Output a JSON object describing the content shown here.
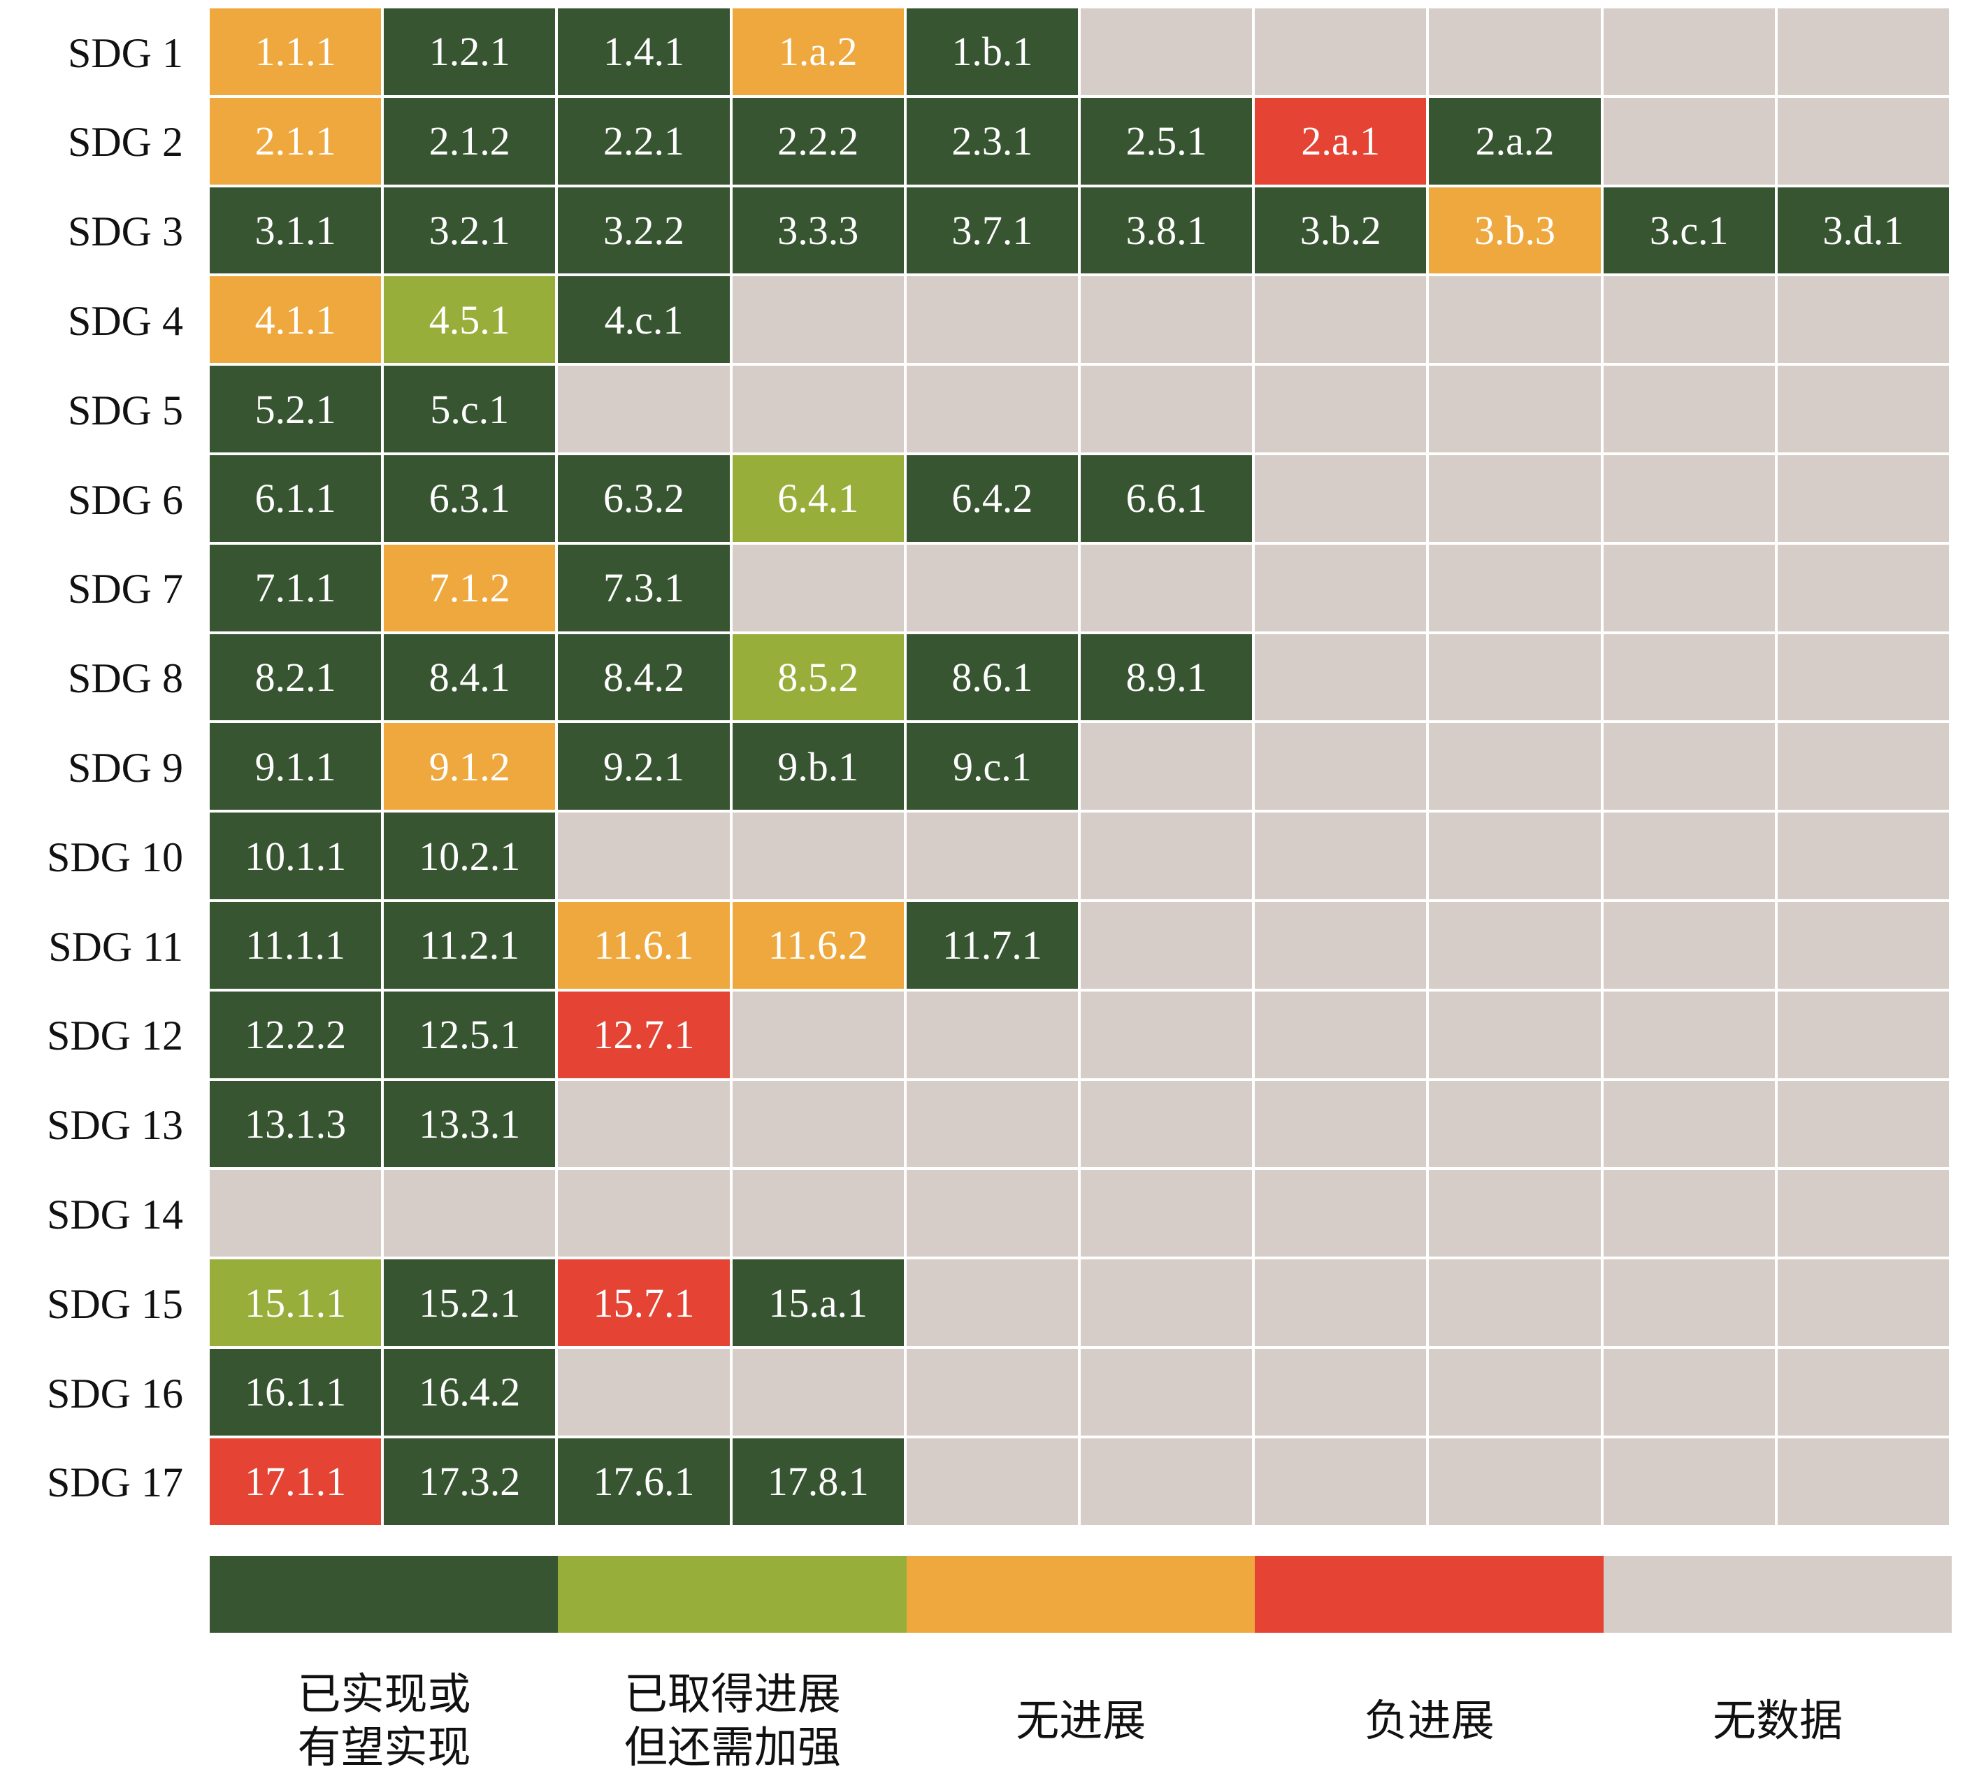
{
  "chart_data": {
    "type": "heatmap",
    "title": "",
    "rows": [
      {
        "label": "SDG 1",
        "cells": [
          [
            "1.1.1",
            "no_progress"
          ],
          [
            "1.2.1",
            "achieved"
          ],
          [
            "1.4.1",
            "achieved"
          ],
          [
            "1.a.2",
            "no_progress"
          ],
          [
            "1.b.1",
            "achieved"
          ]
        ]
      },
      {
        "label": "SDG 2",
        "cells": [
          [
            "2.1.1",
            "no_progress"
          ],
          [
            "2.1.2",
            "achieved"
          ],
          [
            "2.2.1",
            "achieved"
          ],
          [
            "2.2.2",
            "achieved"
          ],
          [
            "2.3.1",
            "achieved"
          ],
          [
            "2.5.1",
            "achieved"
          ],
          [
            "2.a.1",
            "negative"
          ],
          [
            "2.a.2",
            "achieved"
          ]
        ]
      },
      {
        "label": "SDG 3",
        "cells": [
          [
            "3.1.1",
            "achieved"
          ],
          [
            "3.2.1",
            "achieved"
          ],
          [
            "3.2.2",
            "achieved"
          ],
          [
            "3.3.3",
            "achieved"
          ],
          [
            "3.7.1",
            "achieved"
          ],
          [
            "3.8.1",
            "achieved"
          ],
          [
            "3.b.2",
            "achieved"
          ],
          [
            "3.b.3",
            "no_progress"
          ],
          [
            "3.c.1",
            "achieved"
          ],
          [
            "3.d.1",
            "achieved"
          ]
        ]
      },
      {
        "label": "SDG 4",
        "cells": [
          [
            "4.1.1",
            "no_progress"
          ],
          [
            "4.5.1",
            "progress"
          ],
          [
            "4.c.1",
            "achieved"
          ]
        ]
      },
      {
        "label": "SDG 5",
        "cells": [
          [
            "5.2.1",
            "achieved"
          ],
          [
            "5.c.1",
            "achieved"
          ]
        ]
      },
      {
        "label": "SDG 6",
        "cells": [
          [
            "6.1.1",
            "achieved"
          ],
          [
            "6.3.1",
            "achieved"
          ],
          [
            "6.3.2",
            "achieved"
          ],
          [
            "6.4.1",
            "progress"
          ],
          [
            "6.4.2",
            "achieved"
          ],
          [
            "6.6.1",
            "achieved"
          ]
        ]
      },
      {
        "label": "SDG 7",
        "cells": [
          [
            "7.1.1",
            "achieved"
          ],
          [
            "7.1.2",
            "no_progress"
          ],
          [
            "7.3.1",
            "achieved"
          ]
        ]
      },
      {
        "label": "SDG 8",
        "cells": [
          [
            "8.2.1",
            "achieved"
          ],
          [
            "8.4.1",
            "achieved"
          ],
          [
            "8.4.2",
            "achieved"
          ],
          [
            "8.5.2",
            "progress"
          ],
          [
            "8.6.1",
            "achieved"
          ],
          [
            "8.9.1",
            "achieved"
          ]
        ]
      },
      {
        "label": "SDG 9",
        "cells": [
          [
            "9.1.1",
            "achieved"
          ],
          [
            "9.1.2",
            "no_progress"
          ],
          [
            "9.2.1",
            "achieved"
          ],
          [
            "9.b.1",
            "achieved"
          ],
          [
            "9.c.1",
            "achieved"
          ]
        ]
      },
      {
        "label": "SDG 10",
        "cells": [
          [
            "10.1.1",
            "achieved"
          ],
          [
            "10.2.1",
            "achieved"
          ]
        ]
      },
      {
        "label": "SDG 11",
        "cells": [
          [
            "11.1.1",
            "achieved"
          ],
          [
            "11.2.1",
            "achieved"
          ],
          [
            "11.6.1",
            "no_progress"
          ],
          [
            "11.6.2",
            "no_progress"
          ],
          [
            "11.7.1",
            "achieved"
          ]
        ]
      },
      {
        "label": "SDG 12",
        "cells": [
          [
            "12.2.2",
            "achieved"
          ],
          [
            "12.5.1",
            "achieved"
          ],
          [
            "12.7.1",
            "negative"
          ]
        ]
      },
      {
        "label": "SDG 13",
        "cells": [
          [
            "13.1.3",
            "achieved"
          ],
          [
            "13.3.1",
            "achieved"
          ]
        ]
      },
      {
        "label": "SDG 14",
        "cells": []
      },
      {
        "label": "SDG 15",
        "cells": [
          [
            "15.1.1",
            "progress"
          ],
          [
            "15.2.1",
            "achieved"
          ],
          [
            "15.7.1",
            "negative"
          ],
          [
            "15.a.1",
            "achieved"
          ]
        ]
      },
      {
        "label": "SDG 16",
        "cells": [
          [
            "16.1.1",
            "achieved"
          ],
          [
            "16.4.2",
            "achieved"
          ]
        ]
      },
      {
        "label": "SDG 17",
        "cells": [
          [
            "17.1.1",
            "negative"
          ],
          [
            "17.3.2",
            "achieved"
          ],
          [
            "17.6.1",
            "achieved"
          ],
          [
            "17.8.1",
            "achieved"
          ]
        ]
      }
    ],
    "columns": 10,
    "legend": [
      {
        "key": "achieved",
        "label": "已实现或\n有望实现",
        "color": "#375531"
      },
      {
        "key": "progress",
        "label": "已取得进展\n但还需加强",
        "color": "#97AF3A"
      },
      {
        "key": "no_progress",
        "label": "无进展",
        "color": "#EFA83D"
      },
      {
        "key": "negative",
        "label": "负进展",
        "color": "#E54333"
      },
      {
        "key": "no_data",
        "label": "无数据",
        "color": "#D6CDC8"
      }
    ],
    "legend_position": "bottom"
  }
}
